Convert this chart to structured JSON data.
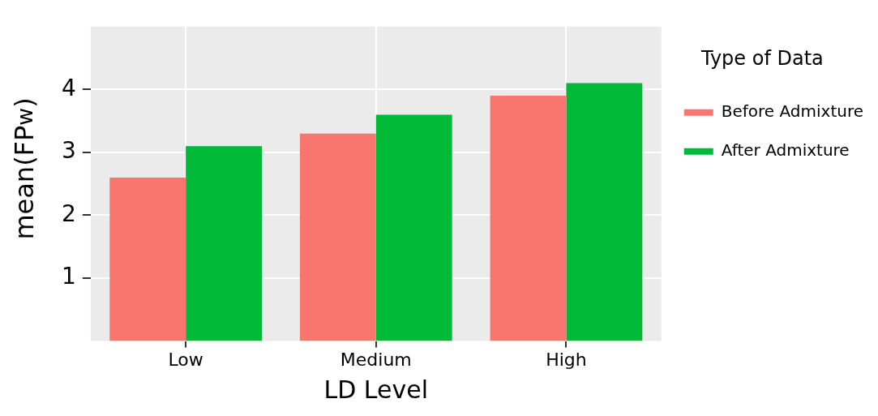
{
  "chart_data": {
    "type": "bar",
    "xlabel": "LD Level",
    "ylabel": "mean(FP$_{w}$)",
    "legend_title": "Type of Data",
    "categories": [
      "Low",
      "Medium",
      "High"
    ],
    "series": [
      {
        "name": "Before Admixture",
        "color": "#f8766d",
        "values": [
          2.6,
          3.3,
          3.9
        ]
      },
      {
        "name": "After Admixture",
        "color": "#00ba38",
        "values": [
          3.1,
          3.6,
          4.1
        ]
      }
    ],
    "ylim": [
      0,
      5
    ],
    "yticks": [
      1,
      2,
      3,
      4
    ],
    "grid": true,
    "legend": "right"
  }
}
